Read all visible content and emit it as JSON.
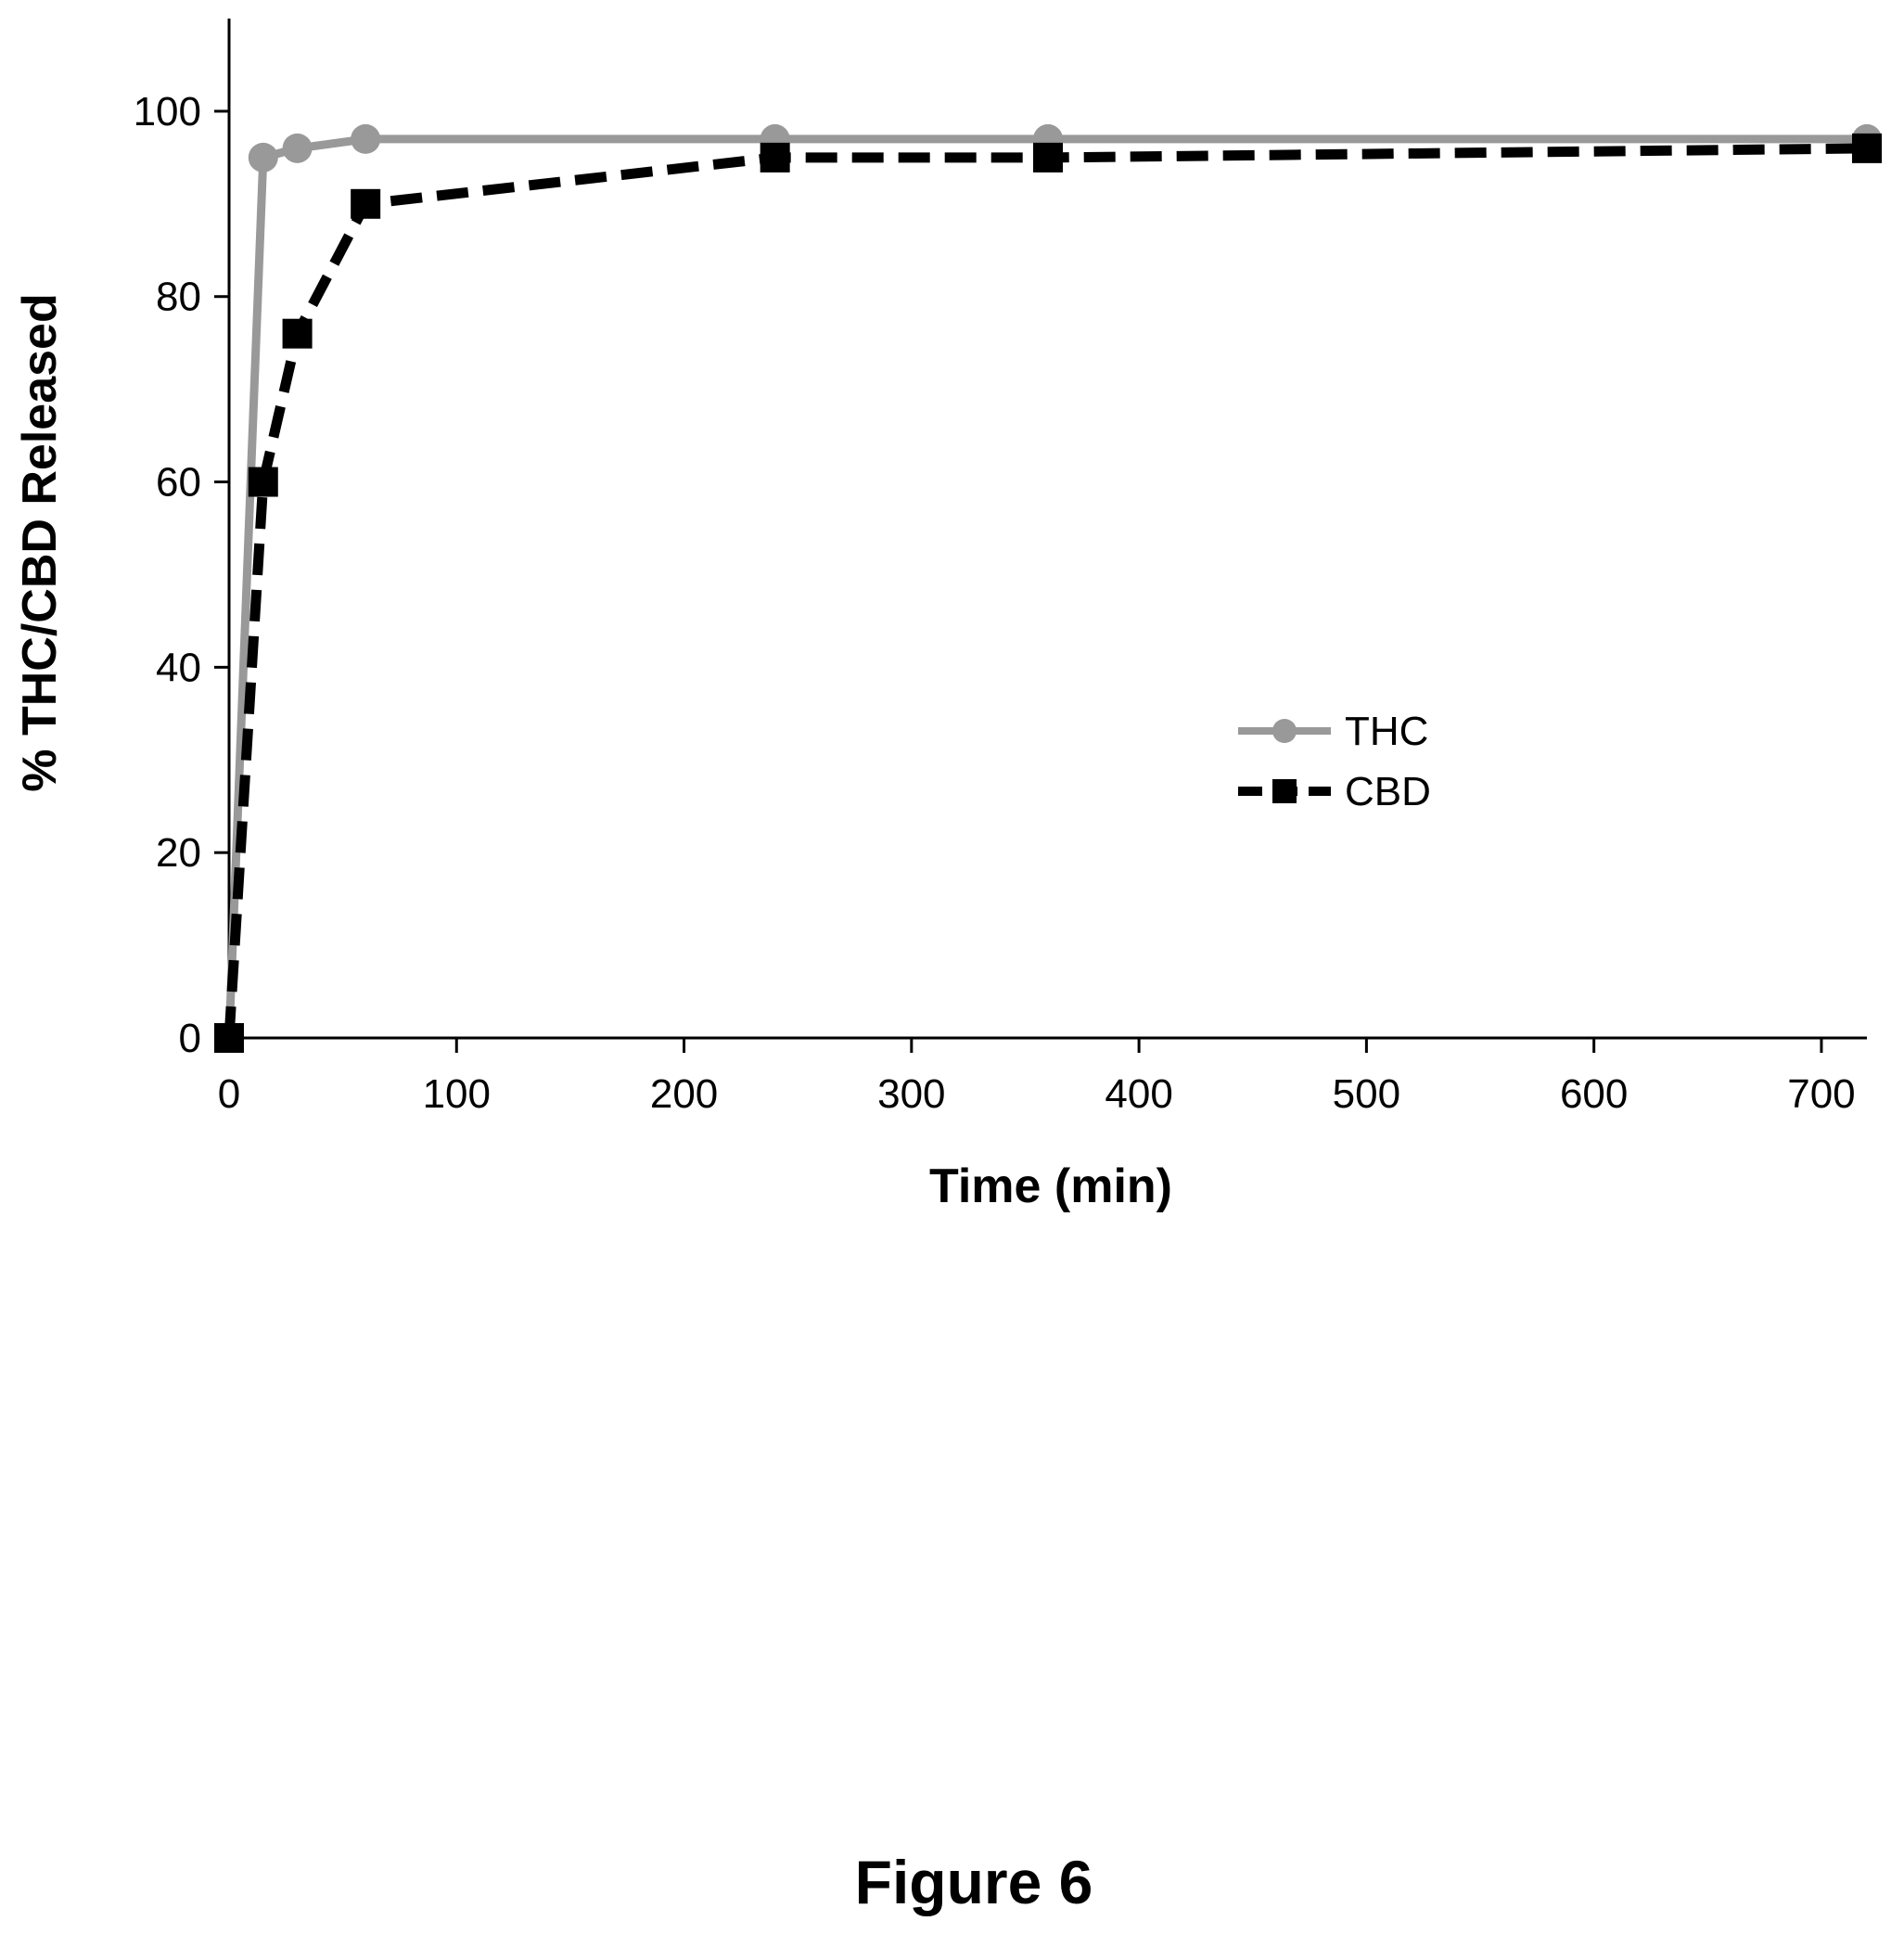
{
  "chart_data": {
    "type": "line",
    "xlabel": "Time (min)",
    "ylabel": "% THC/CBD Released",
    "xlim": [
      0,
      720
    ],
    "ylim": [
      0,
      110
    ],
    "xticks": [
      0,
      100,
      200,
      300,
      400,
      500,
      600,
      700
    ],
    "yticks": [
      0,
      20,
      40,
      60,
      80,
      100
    ],
    "grid": false,
    "legend_position": "center-right",
    "series": [
      {
        "name": "THC",
        "x": [
          0,
          15,
          30,
          60,
          240,
          360,
          720
        ],
        "y": [
          0,
          95,
          96,
          97,
          97,
          97,
          97
        ],
        "color": "#999999",
        "line_style": "solid",
        "marker": "circle"
      },
      {
        "name": "CBD",
        "x": [
          0,
          15,
          30,
          60,
          240,
          360,
          720
        ],
        "y": [
          0,
          60,
          76,
          90,
          95,
          95,
          96
        ],
        "color": "#000000",
        "line_style": "dashed",
        "marker": "square"
      }
    ]
  },
  "caption": "Figure 6"
}
